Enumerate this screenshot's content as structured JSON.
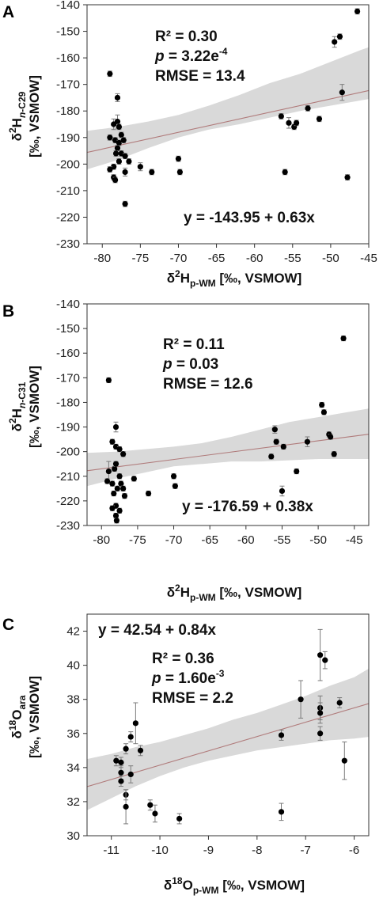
{
  "colors": {
    "band": "#d9d9d9",
    "fit_line": "#b07b7b",
    "point": "#000000",
    "errorbar": "#7a7a7a",
    "axis": "#333333"
  },
  "chart_data": [
    {
      "type": "scatter",
      "panel_label": "A",
      "xlabel": {
        "pre": "δ",
        "sup": "2",
        "mid": "H",
        "sub": "p-WM",
        "post": " [‰, VSMOW]"
      },
      "ylabel": {
        "line1_pre": "δ",
        "line1_sup": "2",
        "line1_mid": "H",
        "line1_sub_italic": "n",
        "line1_sub": "-C29",
        "line2": "[‰, VSMOW]"
      },
      "xlim": [
        -82,
        -45
      ],
      "ylim": [
        -230,
        -140
      ],
      "xticks": [
        -80,
        -75,
        -70,
        -65,
        -60,
        -55,
        -50,
        -45
      ],
      "yticks": [
        -230,
        -220,
        -210,
        -200,
        -190,
        -180,
        -170,
        -160,
        -150,
        -140
      ],
      "stats": {
        "r2": "R² = 0.30",
        "p_label": "p",
        "p_value": " = 3.22e",
        "p_exp": "-4",
        "rmse": "RMSE = 13.4"
      },
      "equation": "y = -143.95 + 0.63x",
      "fit": {
        "intercept": -143.95,
        "slope": 0.63
      },
      "band": {
        "x": [
          -82,
          -78,
          -74,
          -70,
          -66,
          -62,
          -58,
          -54,
          -50,
          -46,
          -45
        ],
        "lower": [
          -202,
          -198.5,
          -194,
          -190,
          -187,
          -185,
          -182.5,
          -180,
          -178,
          -176,
          -175.5
        ],
        "upper": [
          -187.5,
          -186,
          -184,
          -181.5,
          -178,
          -174,
          -169.5,
          -166,
          -161.5,
          -157,
          -156
        ]
      },
      "points": [
        {
          "x": -79,
          "y": -166,
          "err": 1
        },
        {
          "x": -78,
          "y": -175,
          "err": 1.5
        },
        {
          "x": -78.5,
          "y": -185,
          "err": 2
        },
        {
          "x": -78,
          "y": -184,
          "err": 2.5
        },
        {
          "x": -77.8,
          "y": -186,
          "err": 1
        },
        {
          "x": -77.5,
          "y": -189,
          "err": 1
        },
        {
          "x": -79,
          "y": -190,
          "err": 1
        },
        {
          "x": -78.3,
          "y": -191,
          "err": 1
        },
        {
          "x": -77.8,
          "y": -192,
          "err": 1
        },
        {
          "x": -78,
          "y": -194,
          "err": 1
        },
        {
          "x": -78.2,
          "y": -196,
          "err": 1
        },
        {
          "x": -77.5,
          "y": -196,
          "err": 1
        },
        {
          "x": -77,
          "y": -197,
          "err": 1
        },
        {
          "x": -77.2,
          "y": -191,
          "err": 1
        },
        {
          "x": -76.5,
          "y": -199,
          "err": 1
        },
        {
          "x": -77.8,
          "y": -199,
          "err": 1
        },
        {
          "x": -78.5,
          "y": -201,
          "err": 1
        },
        {
          "x": -79,
          "y": -202,
          "err": 1
        },
        {
          "x": -77,
          "y": -203,
          "err": 1.5
        },
        {
          "x": -78.5,
          "y": -205,
          "err": 1
        },
        {
          "x": -78.3,
          "y": -206,
          "err": 1
        },
        {
          "x": -77,
          "y": -215,
          "err": 1
        },
        {
          "x": -75,
          "y": -201,
          "err": 1.5
        },
        {
          "x": -73.5,
          "y": -203,
          "err": 1
        },
        {
          "x": -70,
          "y": -198,
          "err": 1
        },
        {
          "x": -69.8,
          "y": -203,
          "err": 1
        },
        {
          "x": -56.5,
          "y": -182,
          "err": 1
        },
        {
          "x": -55.5,
          "y": -184.5,
          "err": 2
        },
        {
          "x": -54.8,
          "y": -186,
          "err": 1
        },
        {
          "x": -54.5,
          "y": -184.5,
          "err": 1
        },
        {
          "x": -56,
          "y": -203,
          "err": 1
        },
        {
          "x": -53,
          "y": -179,
          "err": 1
        },
        {
          "x": -51.5,
          "y": -183,
          "err": 1
        },
        {
          "x": -49.5,
          "y": -154,
          "err": 2
        },
        {
          "x": -48.8,
          "y": -152,
          "err": 1
        },
        {
          "x": -48.5,
          "y": -173,
          "err": 3
        },
        {
          "x": -47.8,
          "y": -205,
          "err": 1
        },
        {
          "x": -46.5,
          "y": -142.5,
          "err": 1
        }
      ]
    },
    {
      "type": "scatter",
      "panel_label": "B",
      "xlabel": {
        "pre": "δ",
        "sup": "2",
        "mid": "H",
        "sub": "p-WM",
        "post": " [‰, VSMOW]"
      },
      "ylabel": {
        "line1_pre": "δ",
        "line1_sup": "2",
        "line1_mid": "H",
        "line1_sub_italic": "n",
        "line1_sub": "-C31",
        "line2": "[‰, VSMOW]"
      },
      "xlim": [
        -82,
        -43
      ],
      "ylim": [
        -230,
        -140
      ],
      "xticks": [
        -80,
        -75,
        -70,
        -65,
        -60,
        -55,
        -50,
        -45
      ],
      "yticks": [
        -230,
        -220,
        -210,
        -200,
        -190,
        -180,
        -170,
        -160,
        -150,
        -140
      ],
      "stats": {
        "r2": "R² = 0.11",
        "p_label": "p",
        "p_value": " = 0.03",
        "p_exp": "",
        "rmse": "RMSE = 12.6"
      },
      "equation": "y = -176.59 + 0.38x",
      "fit": {
        "intercept": -176.59,
        "slope": 0.38
      },
      "band": {
        "x": [
          -82,
          -78,
          -74,
          -70,
          -66,
          -62,
          -58,
          -54,
          -50,
          -46,
          -43
        ],
        "lower": [
          -214,
          -211,
          -208.5,
          -206,
          -205,
          -204,
          -204,
          -203.5,
          -203,
          -203,
          -203
        ],
        "upper": [
          -200.5,
          -200,
          -199,
          -198,
          -196.5,
          -194,
          -191,
          -188,
          -186,
          -184,
          -182.5
        ]
      },
      "points": [
        {
          "x": -79,
          "y": -171,
          "err": 1
        },
        {
          "x": -78,
          "y": -190,
          "err": 2
        },
        {
          "x": -78.5,
          "y": -196,
          "err": 1
        },
        {
          "x": -78,
          "y": -198,
          "err": 1
        },
        {
          "x": -77.5,
          "y": -199,
          "err": 1
        },
        {
          "x": -77,
          "y": -201,
          "err": 1
        },
        {
          "x": -79,
          "y": -208,
          "err": 4
        },
        {
          "x": -79.2,
          "y": -212,
          "err": 1
        },
        {
          "x": -78.2,
          "y": -207,
          "err": 1
        },
        {
          "x": -78,
          "y": -205,
          "err": 1
        },
        {
          "x": -77.5,
          "y": -210,
          "err": 1
        },
        {
          "x": -78.5,
          "y": -213,
          "err": 1
        },
        {
          "x": -77.8,
          "y": -215,
          "err": 1
        },
        {
          "x": -77.3,
          "y": -213,
          "err": 1
        },
        {
          "x": -77,
          "y": -215,
          "err": 1
        },
        {
          "x": -76.8,
          "y": -218,
          "err": 1
        },
        {
          "x": -78.3,
          "y": -217,
          "err": 1
        },
        {
          "x": -78,
          "y": -222,
          "err": 1
        },
        {
          "x": -78.5,
          "y": -223,
          "err": 1
        },
        {
          "x": -77.5,
          "y": -224,
          "err": 1
        },
        {
          "x": -78,
          "y": -226,
          "err": 1
        },
        {
          "x": -77.9,
          "y": -228,
          "err": 1
        },
        {
          "x": -75.5,
          "y": -211,
          "err": 1
        },
        {
          "x": -73.5,
          "y": -217,
          "err": 1
        },
        {
          "x": -70,
          "y": -210,
          "err": 1
        },
        {
          "x": -69.8,
          "y": -214,
          "err": 1
        },
        {
          "x": -56.5,
          "y": -202,
          "err": 1
        },
        {
          "x": -56,
          "y": -191,
          "err": 1.5
        },
        {
          "x": -55.8,
          "y": -196,
          "err": 1
        },
        {
          "x": -54.8,
          "y": -198,
          "err": 1
        },
        {
          "x": -55,
          "y": -216,
          "err": 2
        },
        {
          "x": -53,
          "y": -208,
          "err": 1
        },
        {
          "x": -51.5,
          "y": -196,
          "err": 2
        },
        {
          "x": -49.5,
          "y": -181,
          "err": 1
        },
        {
          "x": -49.2,
          "y": -184,
          "err": 1
        },
        {
          "x": -48.5,
          "y": -193,
          "err": 1
        },
        {
          "x": -48.3,
          "y": -194,
          "err": 1
        },
        {
          "x": -47.8,
          "y": -201,
          "err": 1
        },
        {
          "x": -46.5,
          "y": -154,
          "err": 1
        }
      ]
    },
    {
      "type": "scatter",
      "panel_label": "C",
      "xlabel": {
        "pre": "δ",
        "sup": "18",
        "mid": "O",
        "sub": "p-WM",
        "post": " [‰, VSMOW]"
      },
      "ylabel": {
        "line1_pre": "δ",
        "line1_sup": "18",
        "line1_mid": "O",
        "line1_sub_italic": "",
        "line1_sub": "ara",
        "line2": "[‰, VSMOW]"
      },
      "xlim": [
        -11.5,
        -5.7
      ],
      "ylim": [
        30,
        43
      ],
      "xticks": [
        -11,
        -10,
        -9,
        -8,
        -7,
        -6
      ],
      "yticks": [
        30,
        32,
        34,
        36,
        38,
        40,
        42
      ],
      "stats": {
        "r2": "R² = 0.36",
        "p_label": "p",
        "p_value": " = 1.60e",
        "p_exp": "-3",
        "rmse": "RMSE = 2.2"
      },
      "equation": "y = 42.54 + 0.84x",
      "fit": {
        "intercept": 42.54,
        "slope": 0.84
      },
      "band": {
        "x": [
          -11.5,
          -11,
          -10.5,
          -10,
          -9.5,
          -9,
          -8.5,
          -8,
          -7.5,
          -7,
          -6.5,
          -6,
          -5.7
        ],
        "lower": [
          31.5,
          32.2,
          32.9,
          33.5,
          34,
          34.4,
          34.7,
          35,
          35.2,
          35.4,
          35.6,
          35.7,
          35.8
        ],
        "upper": [
          34.5,
          34.8,
          35.2,
          35.5,
          35.9,
          36.3,
          36.8,
          37.2,
          37.7,
          38.2,
          38.8,
          39.3,
          39.8
        ]
      },
      "points": [
        {
          "x": -10.9,
          "y": 34.4,
          "err": 0.3
        },
        {
          "x": -10.8,
          "y": 34.3,
          "err": 0.3
        },
        {
          "x": -10.8,
          "y": 33.7,
          "err": 0.4
        },
        {
          "x": -10.8,
          "y": 33.2,
          "err": 0.3
        },
        {
          "x": -10.7,
          "y": 35.1,
          "err": 0.3
        },
        {
          "x": -10.7,
          "y": 32.4,
          "err": 0.3
        },
        {
          "x": -10.7,
          "y": 31.7,
          "err": 1
        },
        {
          "x": -10.6,
          "y": 35.8,
          "err": 0.3
        },
        {
          "x": -10.6,
          "y": 33.6,
          "err": 0.5
        },
        {
          "x": -10.5,
          "y": 36.6,
          "err": 1.2
        },
        {
          "x": -10.4,
          "y": 35,
          "err": 0.3
        },
        {
          "x": -10.2,
          "y": 31.8,
          "err": 0.3
        },
        {
          "x": -10.1,
          "y": 31.3,
          "err": 0.5
        },
        {
          "x": -9.6,
          "y": 31,
          "err": 0.3
        },
        {
          "x": -7.5,
          "y": 35.9,
          "err": 0.3
        },
        {
          "x": -7.5,
          "y": 31.4,
          "err": 0.5
        },
        {
          "x": -7.1,
          "y": 38,
          "err": 1.1
        },
        {
          "x": -6.7,
          "y": 40.6,
          "err": 1.5
        },
        {
          "x": -6.7,
          "y": 37.5,
          "err": 0.7
        },
        {
          "x": -6.7,
          "y": 37.2,
          "err": 0.6
        },
        {
          "x": -6.7,
          "y": 36,
          "err": 0.4
        },
        {
          "x": -6.6,
          "y": 40.3,
          "err": 0.5
        },
        {
          "x": -6.3,
          "y": 37.8,
          "err": 0.3
        },
        {
          "x": -6.2,
          "y": 34.4,
          "err": 1.1
        }
      ]
    }
  ]
}
